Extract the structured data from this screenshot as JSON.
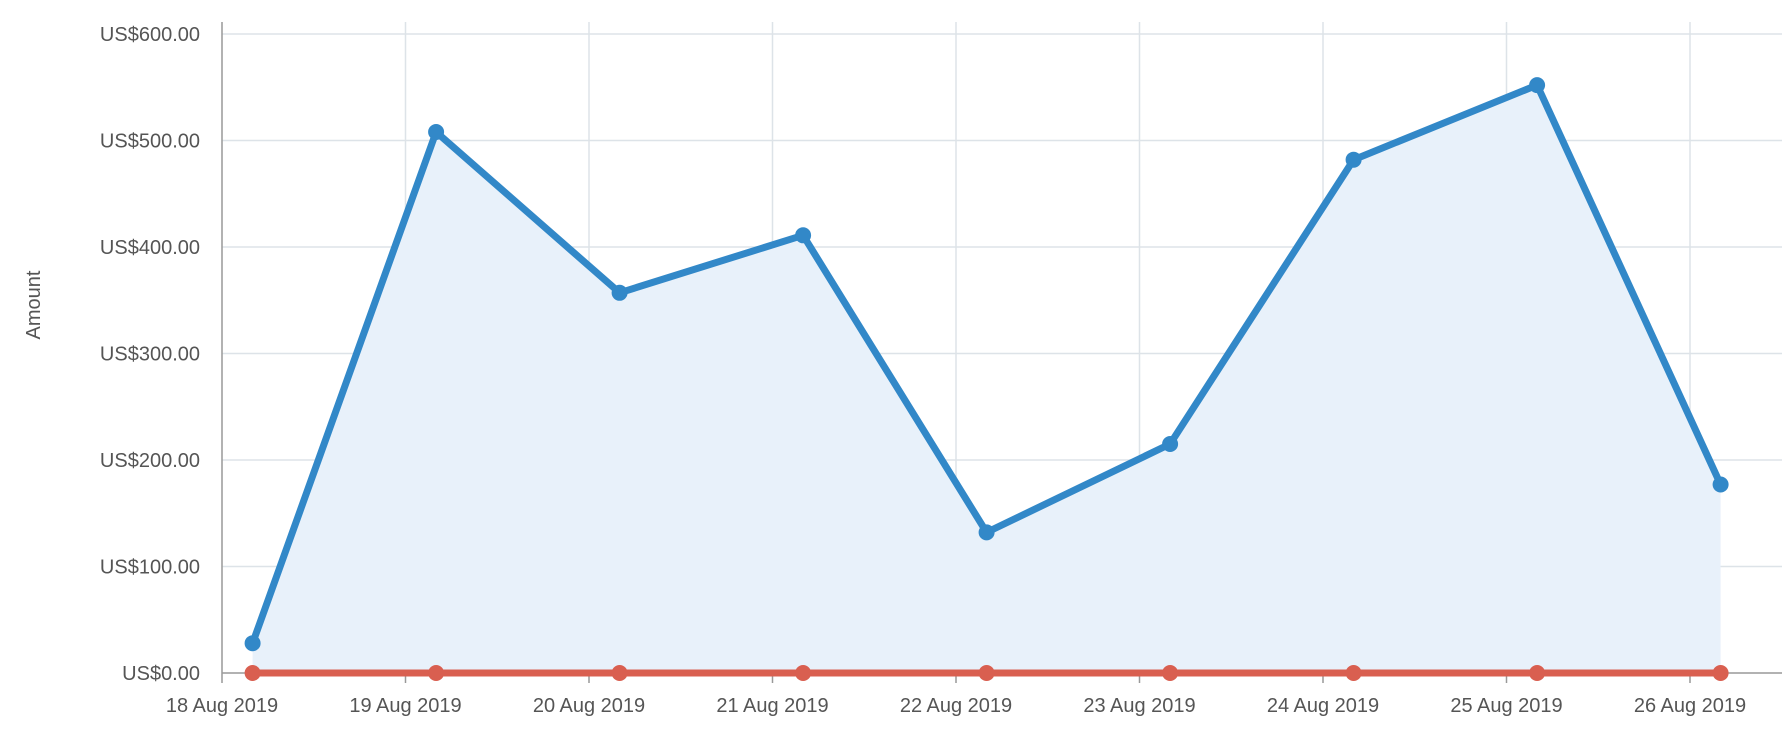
{
  "chart_data": {
    "type": "area",
    "title": "",
    "xlabel": "",
    "ylabel": "Amount",
    "y_tick_labels": [
      "US$0.00",
      "US$100.00",
      "US$200.00",
      "US$300.00",
      "US$400.00",
      "US$500.00",
      "US$600.00"
    ],
    "y_ticks": [
      0,
      100,
      200,
      300,
      400,
      500,
      600
    ],
    "ylim": [
      0,
      600
    ],
    "x_tick_labels": [
      "18 Aug 2019",
      "19 Aug 2019",
      "20 Aug 2019",
      "21 Aug 2019",
      "22 Aug 2019",
      "23 Aug 2019",
      "24 Aug 2019",
      "25 Aug 2019",
      "26 Aug 2019"
    ],
    "x_tick_dates": [
      "2019-08-18T00:00",
      "2019-08-19T00:00",
      "2019-08-20T00:00",
      "2019-08-21T00:00",
      "2019-08-22T00:00",
      "2019-08-23T00:00",
      "2019-08-24T00:00",
      "2019-08-25T00:00",
      "2019-08-26T00:00"
    ],
    "x": [
      "2019-08-18T04:00",
      "2019-08-19T04:00",
      "2019-08-20T04:00",
      "2019-08-21T04:00",
      "2019-08-22T04:00",
      "2019-08-23T04:00",
      "2019-08-24T04:00",
      "2019-08-25T04:00",
      "2019-08-26T04:00"
    ],
    "xlim": [
      "2019-08-18T00:00",
      "2019-08-26T12:00"
    ],
    "grid": true,
    "series": [
      {
        "color": "#3288c8",
        "fill": "#e8f1fa",
        "values": [
          28,
          508,
          357,
          411,
          132,
          215,
          482,
          552,
          177
        ]
      },
      {
        "color": "#d95f50",
        "values": [
          0,
          0,
          0,
          0,
          0,
          0,
          0,
          0,
          0
        ]
      }
    ]
  }
}
